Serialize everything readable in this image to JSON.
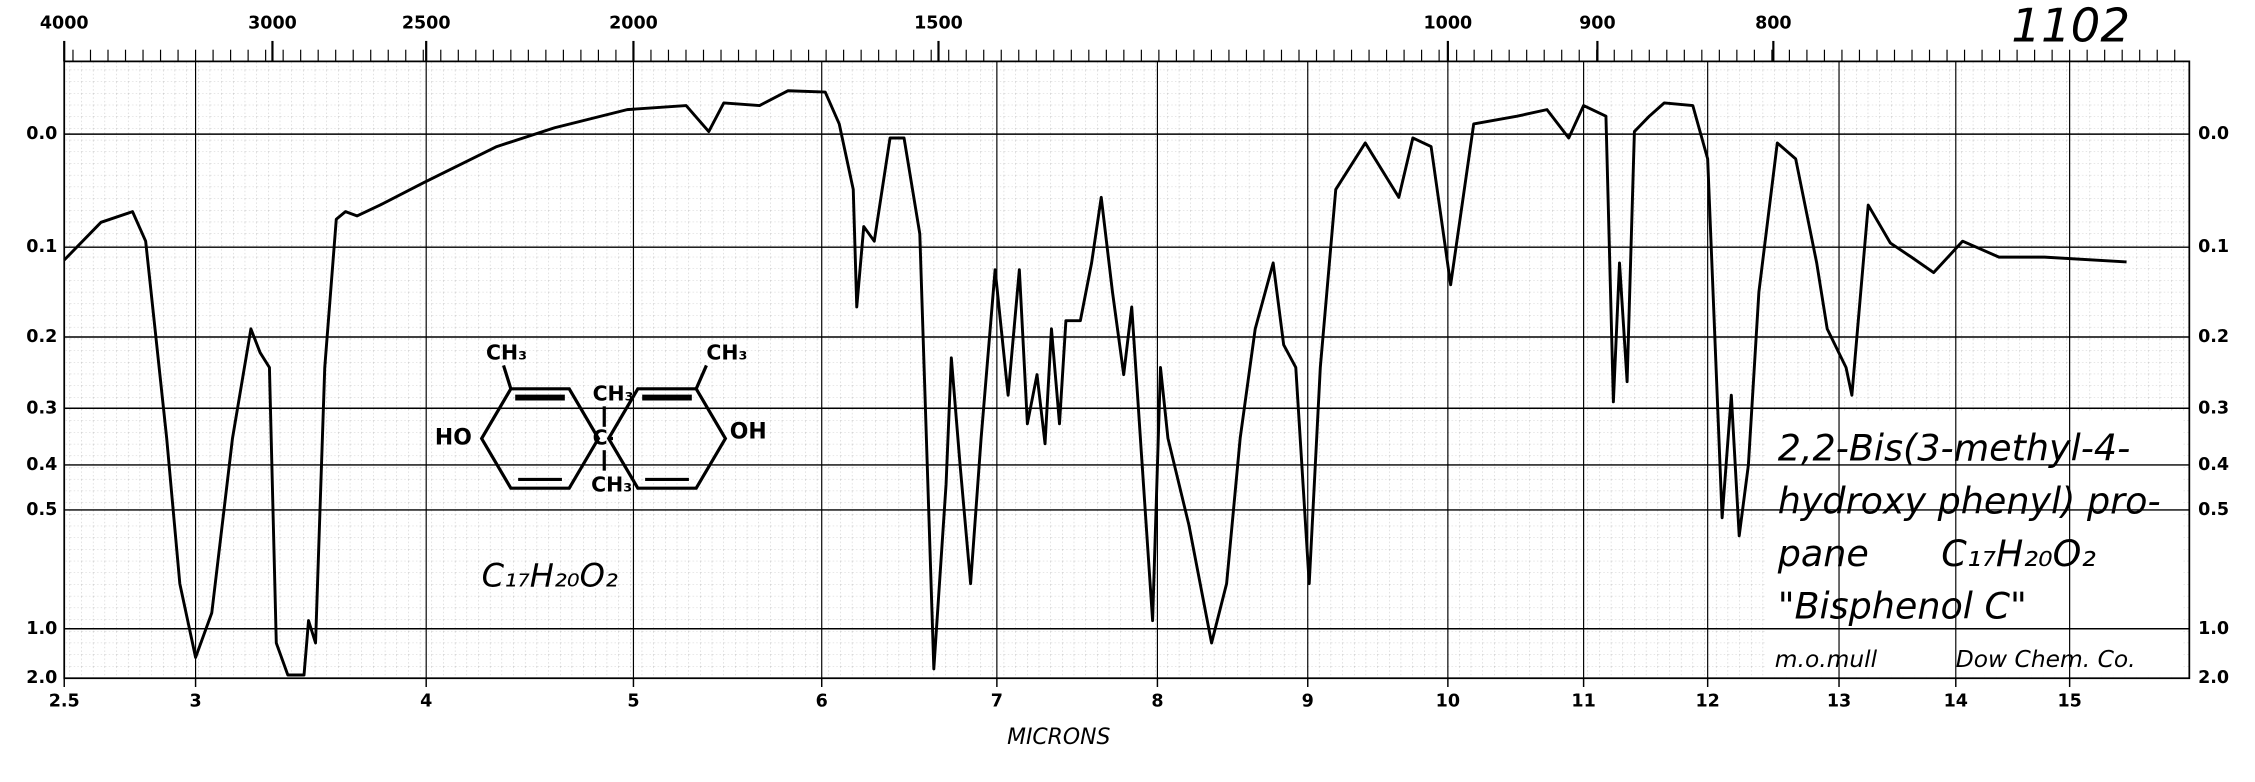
{
  "chart_data": {
    "type": "line",
    "x_label": "MICRONS",
    "x": [
      2.5,
      2.64,
      2.76,
      2.81,
      2.89,
      2.94,
      3.0,
      3.07,
      3.16,
      3.24,
      3.28,
      3.32,
      3.35,
      3.4,
      3.47,
      3.49,
      3.52,
      3.56,
      3.61,
      3.65,
      3.7,
      3.8,
      3.99,
      4.34,
      4.62,
      4.97,
      5.28,
      5.4,
      5.48,
      5.67,
      5.82,
      6.02,
      6.1,
      6.18,
      6.2,
      6.24,
      6.3,
      6.39,
      6.47,
      6.56,
      6.64,
      6.71,
      6.74,
      6.79,
      6.85,
      6.91,
      6.99,
      7.07,
      7.14,
      7.19,
      7.25,
      7.3,
      7.34,
      7.39,
      7.43,
      7.52,
      7.59,
      7.65,
      7.72,
      7.79,
      7.84,
      7.9,
      7.97,
      8.02,
      8.07,
      8.21,
      8.36,
      8.46,
      8.55,
      8.65,
      8.77,
      8.84,
      8.92,
      9.01,
      9.09,
      9.2,
      9.41,
      9.65,
      9.75,
      9.88,
      10.02,
      10.19,
      10.51,
      10.73,
      10.89,
      11.0,
      11.18,
      11.24,
      11.29,
      11.35,
      11.41,
      11.53,
      11.65,
      11.88,
      12.0,
      12.11,
      12.18,
      12.24,
      12.31,
      12.39,
      12.53,
      12.67,
      12.83,
      12.91,
      13.06,
      13.11,
      13.25,
      13.44,
      13.62,
      13.81,
      14.06,
      14.38,
      14.78,
      15.5
    ],
    "values": [
      0.113,
      0.076,
      0.066,
      0.094,
      0.35,
      0.74,
      1.32,
      0.89,
      0.35,
      0.19,
      0.22,
      0.24,
      1.13,
      1.8,
      1.8,
      0.94,
      1.13,
      0.24,
      0.073,
      0.066,
      0.07,
      0.06,
      0.04,
      0.01,
      -0.005,
      -0.019,
      -0.022,
      -0.002,
      -0.024,
      -0.022,
      -0.033,
      -0.032,
      -0.008,
      0.046,
      0.164,
      0.08,
      0.094,
      0.003,
      0.003,
      0.087,
      1.57,
      0.44,
      0.227,
      0.4,
      0.74,
      0.35,
      0.123,
      0.28,
      0.123,
      0.325,
      0.25,
      0.36,
      0.19,
      0.325,
      0.18,
      0.18,
      0.116,
      0.053,
      0.147,
      0.25,
      0.164,
      0.377,
      0.94,
      0.24,
      0.35,
      0.54,
      1.13,
      0.74,
      0.35,
      0.19,
      0.116,
      0.21,
      0.24,
      0.74,
      0.24,
      0.046,
      0.007,
      0.053,
      0.003,
      0.01,
      0.139,
      -0.008,
      -0.014,
      -0.019,
      0.003,
      -0.022,
      -0.014,
      0.29,
      0.116,
      0.26,
      -0.002,
      -0.014,
      -0.024,
      -0.022,
      0.02,
      0.52,
      0.28,
      0.57,
      0.4,
      0.147,
      0.007,
      0.02,
      0.116,
      0.19,
      0.24,
      0.28,
      0.06,
      0.096,
      0.11,
      0.126,
      0.094,
      0.11,
      0.11,
      0.115
    ],
    "color": "#000000",
    "y_scale": "absorbance",
    "xlim": [
      2.5,
      16
    ],
    "xticks": [
      2.5,
      3,
      4,
      5,
      6,
      7,
      8,
      9,
      10,
      11,
      12,
      13,
      14,
      15
    ],
    "x2ticks": [
      4000,
      3000,
      2500,
      2000,
      1500,
      1000,
      900,
      800
    ],
    "ylim": [
      -0.054,
      2.0
    ],
    "yticks": [
      {
        "value": 0,
        "label": "0.0"
      },
      0.1,
      0.2,
      0.3,
      0.4,
      0.5,
      {
        "value": 1,
        "label": "1.0"
      },
      {
        "value": 2,
        "label": "2.0"
      }
    ],
    "grid": true,
    "annotations": [
      "1102",
      "2,2-Bis(3-methyl-4-",
      "hydroxy phenyl) pro-",
      "pane",
      "C₁₇H₂₀O₂",
      "\"Bisphenol C\"",
      "m.o.mull",
      "Dow Chem. Co.",
      "C₁₇H₂₀O₂",
      "HO",
      "OH",
      "CH₃",
      "CH₃",
      "CH₃",
      "C"
    ]
  }
}
